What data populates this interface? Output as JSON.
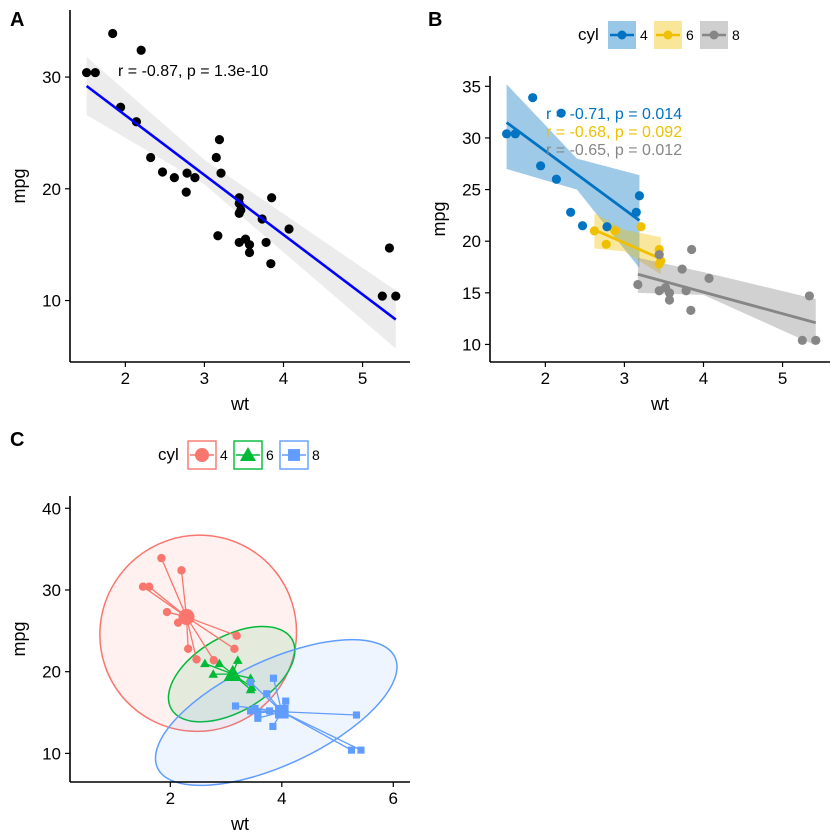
{
  "chart_data": [
    {
      "panel": "A",
      "type": "scatter",
      "xlabel": "wt",
      "ylabel": "mpg",
      "xlim": [
        1.3,
        5.6
      ],
      "ylim": [
        4.5,
        36
      ],
      "xticks": [
        2,
        3,
        4,
        5
      ],
      "yticks": [
        10,
        20,
        30
      ],
      "grid": false,
      "points": [
        {
          "x": 1.51,
          "y": 30.4
        },
        {
          "x": 1.62,
          "y": 30.4
        },
        {
          "x": 1.84,
          "y": 33.9
        },
        {
          "x": 1.94,
          "y": 27.3
        },
        {
          "x": 2.14,
          "y": 26.0
        },
        {
          "x": 2.2,
          "y": 32.4
        },
        {
          "x": 2.32,
          "y": 22.8
        },
        {
          "x": 2.47,
          "y": 21.5
        },
        {
          "x": 2.62,
          "y": 21.0
        },
        {
          "x": 2.77,
          "y": 19.7
        },
        {
          "x": 2.78,
          "y": 21.4
        },
        {
          "x": 2.88,
          "y": 21.0
        },
        {
          "x": 3.15,
          "y": 22.8
        },
        {
          "x": 3.17,
          "y": 15.8
        },
        {
          "x": 3.19,
          "y": 24.4
        },
        {
          "x": 3.21,
          "y": 21.4
        },
        {
          "x": 3.44,
          "y": 18.7
        },
        {
          "x": 3.44,
          "y": 19.2
        },
        {
          "x": 3.44,
          "y": 17.8
        },
        {
          "x": 3.46,
          "y": 18.1
        },
        {
          "x": 3.44,
          "y": 15.2
        },
        {
          "x": 3.52,
          "y": 15.5
        },
        {
          "x": 3.57,
          "y": 14.3
        },
        {
          "x": 3.57,
          "y": 15.0
        },
        {
          "x": 3.73,
          "y": 17.3
        },
        {
          "x": 3.78,
          "y": 15.2
        },
        {
          "x": 3.84,
          "y": 13.3
        },
        {
          "x": 3.85,
          "y": 19.2
        },
        {
          "x": 4.07,
          "y": 16.4
        },
        {
          "x": 5.25,
          "y": 10.4
        },
        {
          "x": 5.34,
          "y": 14.7
        },
        {
          "x": 5.42,
          "y": 10.4
        }
      ],
      "fit": {
        "x": [
          1.51,
          5.42
        ],
        "y": [
          29.2,
          8.3
        ],
        "color": "#0000ff"
      },
      "ci_band": {
        "x": [
          1.51,
          3.0,
          5.42
        ],
        "lower": [
          26.6,
          20.4,
          5.7
        ],
        "upper": [
          31.8,
          22.6,
          10.9
        ]
      },
      "annotation": "r = -0.87, p = 1.3e-10"
    },
    {
      "panel": "B",
      "type": "scatter",
      "xlabel": "wt",
      "ylabel": "mpg",
      "xlim": [
        1.3,
        5.6
      ],
      "ylim": [
        8.3,
        36
      ],
      "xticks": [
        2,
        3,
        4,
        5
      ],
      "yticks": [
        10,
        15,
        20,
        25,
        30,
        35
      ],
      "grid": false,
      "legend": {
        "title": "cyl",
        "placement": "top",
        "items": [
          "4",
          "6",
          "8"
        ]
      },
      "series": [
        {
          "name": "4",
          "color": "#0073c2",
          "points": [
            {
              "x": 1.51,
              "y": 30.4
            },
            {
              "x": 1.62,
              "y": 30.4
            },
            {
              "x": 1.84,
              "y": 33.9
            },
            {
              "x": 1.94,
              "y": 27.3
            },
            {
              "x": 2.14,
              "y": 26.0
            },
            {
              "x": 2.2,
              "y": 32.4
            },
            {
              "x": 2.32,
              "y": 22.8
            },
            {
              "x": 2.47,
              "y": 21.5
            },
            {
              "x": 3.15,
              "y": 22.8
            },
            {
              "x": 3.19,
              "y": 24.4
            },
            {
              "x": 2.78,
              "y": 21.4
            }
          ],
          "fit": {
            "x": [
              1.51,
              3.19
            ],
            "y": [
              31.5,
              22.0
            ]
          },
          "ci_band": {
            "x": [
              1.51,
              2.4,
              3.19
            ],
            "lower": [
              27.0,
              25.0,
              17.4
            ],
            "upper": [
              35.2,
              28.0,
              26.4
            ]
          },
          "annotation": "r = -0.71, p = 0.014"
        },
        {
          "name": "6",
          "color": "#efc000",
          "points": [
            {
              "x": 2.62,
              "y": 21.0
            },
            {
              "x": 2.88,
              "y": 21.0
            },
            {
              "x": 2.77,
              "y": 19.7
            },
            {
              "x": 3.21,
              "y": 21.4
            },
            {
              "x": 3.44,
              "y": 19.2
            },
            {
              "x": 3.44,
              "y": 17.8
            },
            {
              "x": 3.46,
              "y": 18.1
            }
          ],
          "fit": {
            "x": [
              2.62,
              3.46
            ],
            "y": [
              21.1,
              18.3
            ]
          },
          "ci_band": {
            "x": [
              2.62,
              3.0,
              3.46
            ],
            "lower": [
              19.3,
              19.0,
              16.8
            ],
            "upper": [
              22.7,
              21.1,
              20.4
            ]
          },
          "annotation": "r = -0.68, p = 0.092"
        },
        {
          "name": "8",
          "color": "#868686",
          "points": [
            {
              "x": 3.17,
              "y": 15.8
            },
            {
              "x": 3.44,
              "y": 18.7
            },
            {
              "x": 3.44,
              "y": 15.2
            },
            {
              "x": 3.52,
              "y": 15.5
            },
            {
              "x": 3.57,
              "y": 14.3
            },
            {
              "x": 3.57,
              "y": 15.0
            },
            {
              "x": 3.73,
              "y": 17.3
            },
            {
              "x": 3.78,
              "y": 15.2
            },
            {
              "x": 3.84,
              "y": 13.3
            },
            {
              "x": 3.85,
              "y": 19.2
            },
            {
              "x": 4.07,
              "y": 16.4
            },
            {
              "x": 5.25,
              "y": 10.4
            },
            {
              "x": 5.34,
              "y": 14.7
            },
            {
              "x": 5.42,
              "y": 10.4
            }
          ],
          "fit": {
            "x": [
              3.17,
              5.42
            ],
            "y": [
              16.8,
              12.1
            ]
          },
          "ci_band": {
            "x": [
              3.17,
              4.0,
              5.42
            ],
            "lower": [
              15.0,
              14.8,
              9.9
            ],
            "upper": [
              18.4,
              17.0,
              14.4
            ]
          },
          "annotation": "r = -0.65, p = 0.012"
        }
      ]
    },
    {
      "panel": "C",
      "type": "scatter",
      "xlabel": "wt",
      "ylabel": "mpg",
      "xlim": [
        0.2,
        6.3
      ],
      "ylim": [
        6.5,
        41.5
      ],
      "xticks": [
        2,
        4,
        6
      ],
      "yticks": [
        10,
        20,
        30,
        40
      ],
      "grid": false,
      "legend": {
        "title": "cyl",
        "placement": "top",
        "items": [
          "4",
          "6",
          "8"
        ]
      },
      "series": [
        {
          "name": "4",
          "color": "#f8766d",
          "shape": "circle",
          "centroid": {
            "x": 2.29,
            "y": 26.7
          },
          "points": [
            {
              "x": 1.51,
              "y": 30.4
            },
            {
              "x": 1.62,
              "y": 30.4
            },
            {
              "x": 1.84,
              "y": 33.9
            },
            {
              "x": 1.94,
              "y": 27.3
            },
            {
              "x": 2.14,
              "y": 26.0
            },
            {
              "x": 2.2,
              "y": 32.4
            },
            {
              "x": 2.32,
              "y": 22.8
            },
            {
              "x": 2.47,
              "y": 21.5
            },
            {
              "x": 3.15,
              "y": 22.8
            },
            {
              "x": 3.19,
              "y": 24.4
            },
            {
              "x": 2.78,
              "y": 21.4
            }
          ],
          "ellipse": {
            "cx": 2.5,
            "cy": 24.7,
            "rx": 1.75,
            "ry": 12.1,
            "angle_deg": -40
          }
        },
        {
          "name": "6",
          "color": "#00ba38",
          "shape": "triangle",
          "centroid": {
            "x": 3.12,
            "y": 19.7
          },
          "points": [
            {
              "x": 2.62,
              "y": 21.0
            },
            {
              "x": 2.88,
              "y": 21.0
            },
            {
              "x": 2.77,
              "y": 19.7
            },
            {
              "x": 3.21,
              "y": 21.4
            },
            {
              "x": 3.44,
              "y": 19.2
            },
            {
              "x": 3.44,
              "y": 17.8
            },
            {
              "x": 3.46,
              "y": 18.1
            }
          ],
          "ellipse": {
            "cx": 3.1,
            "cy": 19.7,
            "rx": 1.25,
            "ry": 4.6,
            "angle_deg": -30
          }
        },
        {
          "name": "8",
          "color": "#619cff",
          "shape": "square",
          "centroid": {
            "x": 4.0,
            "y": 15.1
          },
          "points": [
            {
              "x": 3.17,
              "y": 15.8
            },
            {
              "x": 3.44,
              "y": 18.7
            },
            {
              "x": 3.44,
              "y": 15.2
            },
            {
              "x": 3.52,
              "y": 15.5
            },
            {
              "x": 3.57,
              "y": 14.3
            },
            {
              "x": 3.57,
              "y": 15.0
            },
            {
              "x": 3.73,
              "y": 17.3
            },
            {
              "x": 3.78,
              "y": 15.2
            },
            {
              "x": 3.84,
              "y": 13.3
            },
            {
              "x": 3.85,
              "y": 19.2
            },
            {
              "x": 4.07,
              "y": 16.4
            },
            {
              "x": 5.25,
              "y": 10.4
            },
            {
              "x": 5.34,
              "y": 14.7
            },
            {
              "x": 5.42,
              "y": 10.4
            }
          ],
          "ellipse": {
            "cx": 3.9,
            "cy": 15.0,
            "rx": 2.35,
            "ry": 6.4,
            "angle_deg": -25
          }
        }
      ]
    }
  ]
}
